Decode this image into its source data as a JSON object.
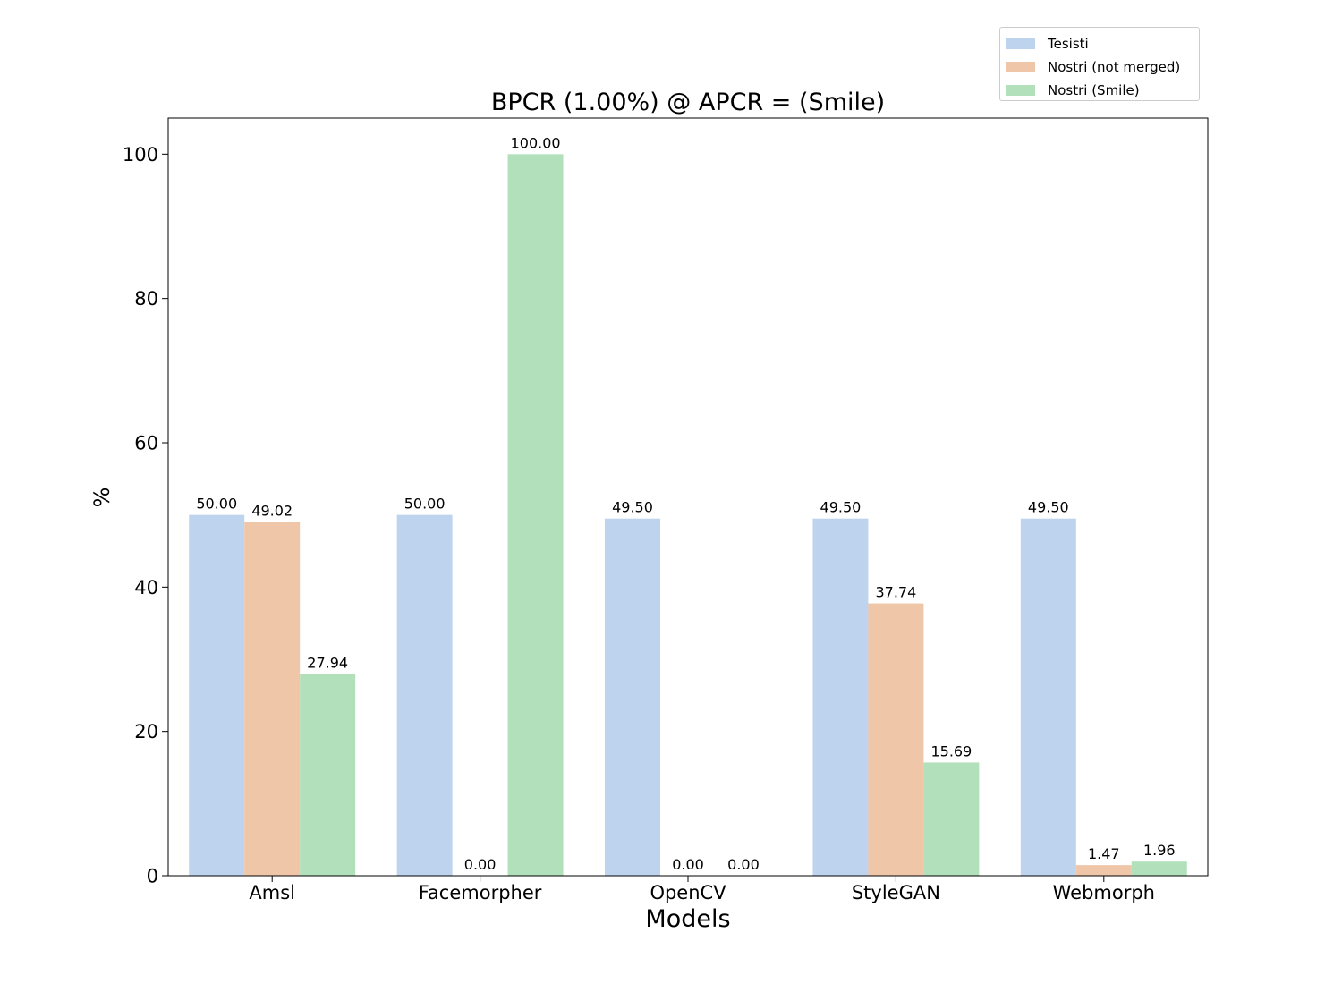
{
  "chart_data": {
    "type": "bar",
    "title": "BPCR (1.00%) @ APCR =  (Smile)",
    "xlabel": "Models",
    "ylabel": "%",
    "ylim": [
      0,
      105
    ],
    "yticks": [
      0,
      20,
      40,
      60,
      80,
      100
    ],
    "categories": [
      "Amsl",
      "Facemorpher",
      "OpenCV",
      "StyleGAN",
      "Webmorph"
    ],
    "series": [
      {
        "name": "Tesisti",
        "color": "#bed3ed",
        "values": [
          50.0,
          50.0,
          49.5,
          49.5,
          49.5
        ],
        "labels": [
          "50.00",
          "50.00",
          "49.50",
          "49.50",
          "49.50"
        ]
      },
      {
        "name": "Nostri (not merged)",
        "color": "#f0c6a9",
        "values": [
          49.02,
          0.0,
          0.0,
          37.74,
          1.47
        ],
        "labels": [
          "49.02",
          "0.00",
          "0.00",
          "37.74",
          "1.47"
        ]
      },
      {
        "name": "Nostri (Smile)",
        "color": "#b1e0ba",
        "values": [
          27.94,
          100.0,
          0.0,
          15.69,
          1.96
        ],
        "labels": [
          "27.94",
          "100.00",
          "0.00",
          "15.69",
          "1.96"
        ]
      }
    ],
    "grid": false,
    "legend_position": "top-right"
  }
}
